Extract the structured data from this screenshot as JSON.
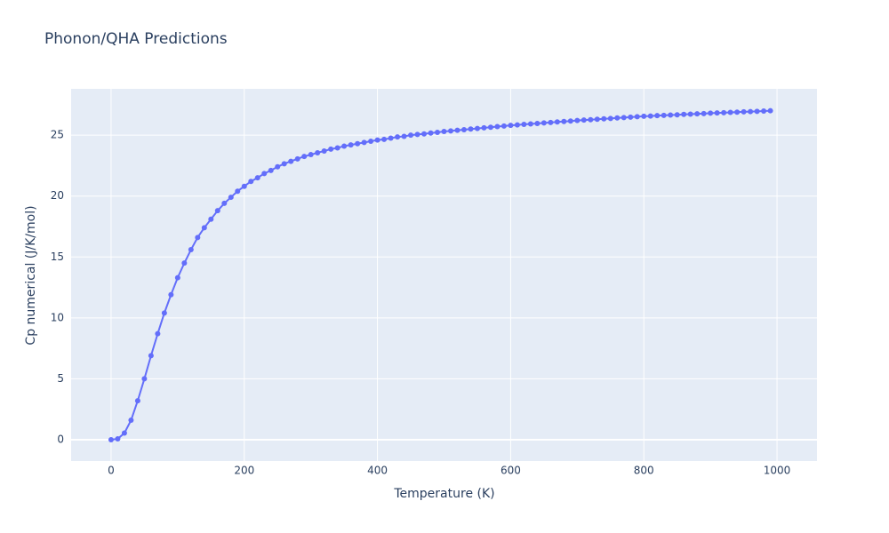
{
  "chart_data": {
    "type": "line",
    "title": "Phonon/QHA Predictions",
    "x_label": "Temperature (K)",
    "y_label": "Cp numerical (J/K/mol)",
    "x": [
      0,
      10,
      20,
      30,
      40,
      50,
      60,
      70,
      80,
      90,
      100,
      110,
      120,
      130,
      140,
      150,
      160,
      170,
      180,
      190,
      200,
      210,
      220,
      230,
      240,
      250,
      260,
      270,
      280,
      290,
      300,
      310,
      320,
      330,
      340,
      350,
      360,
      370,
      380,
      390,
      400,
      410,
      420,
      430,
      440,
      450,
      460,
      470,
      480,
      490,
      500,
      510,
      520,
      530,
      540,
      550,
      560,
      570,
      580,
      590,
      600,
      610,
      620,
      630,
      640,
      650,
      660,
      670,
      680,
      690,
      700,
      710,
      720,
      730,
      740,
      750,
      760,
      770,
      780,
      790,
      800,
      810,
      820,
      830,
      840,
      850,
      860,
      870,
      880,
      890,
      900,
      910,
      920,
      930,
      940,
      950,
      960,
      970,
      980,
      990
    ],
    "series": [
      {
        "color": "#636efa",
        "values": [
          0,
          0.07,
          0.55,
          1.6,
          3.2,
          5.0,
          6.9,
          8.7,
          10.4,
          11.9,
          13.3,
          14.5,
          15.6,
          16.6,
          17.4,
          18.1,
          18.8,
          19.4,
          19.9,
          20.4,
          20.8,
          21.2,
          21.5,
          21.85,
          22.1,
          22.4,
          22.65,
          22.85,
          23.05,
          23.25,
          23.4,
          23.55,
          23.7,
          23.85,
          23.95,
          24.1,
          24.2,
          24.3,
          24.4,
          24.5,
          24.6,
          24.65,
          24.75,
          24.85,
          24.9,
          25.0,
          25.05,
          25.1,
          25.17,
          25.23,
          25.3,
          25.35,
          25.4,
          25.45,
          25.5,
          25.55,
          25.6,
          25.65,
          25.7,
          25.75,
          25.8,
          25.84,
          25.88,
          25.92,
          25.96,
          26.0,
          26.04,
          26.08,
          26.12,
          26.16,
          26.2,
          26.24,
          26.27,
          26.3,
          26.34,
          26.37,
          26.41,
          26.44,
          26.48,
          26.51,
          26.55,
          26.57,
          26.6,
          26.62,
          26.65,
          26.67,
          26.7,
          26.72,
          26.75,
          26.77,
          26.8,
          26.82,
          26.84,
          26.87,
          26.89,
          26.91,
          26.93,
          26.95,
          26.98,
          27.0
        ]
      }
    ],
    "xlim": [
      -60,
      1060
    ],
    "ylim": [
      -1.75,
      28.8
    ],
    "xticks": [
      0,
      200,
      400,
      600,
      800,
      1000
    ],
    "yticks": [
      0,
      5,
      10,
      15,
      20,
      25
    ],
    "grid": true,
    "background": "#e5ecf6"
  }
}
